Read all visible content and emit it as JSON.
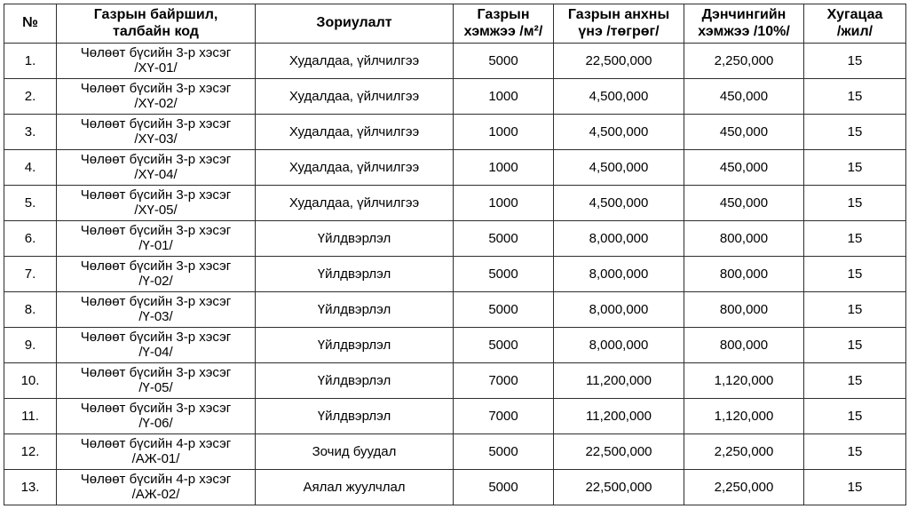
{
  "table": {
    "headers": [
      "№",
      "Газрын байршил,\nталбайн код",
      "Зориулалт",
      "Газрын\nхэмжээ /м²/",
      "Газрын анхны\nүнэ /төгрөг/",
      "Дэнчингийн\nхэмжээ /10%/",
      "Хугацаа\n/жил/"
    ],
    "rows": [
      {
        "no": "1.",
        "location": "Чөлөөт бүсийн 3-р хэсэг\n/ХҮ-01/",
        "purpose": "Худалдаа, үйлчилгээ",
        "size": "5000",
        "price": "22,500,000",
        "deposit": "2,250,000",
        "years": "15"
      },
      {
        "no": "2.",
        "location": "Чөлөөт бүсийн 3-р хэсэг\n/ХҮ-02/",
        "purpose": "Худалдаа, үйлчилгээ",
        "size": "1000",
        "price": "4,500,000",
        "deposit": "450,000",
        "years": "15"
      },
      {
        "no": "3.",
        "location": "Чөлөөт бүсийн 3-р хэсэг\n/ХҮ-03/",
        "purpose": "Худалдаа, үйлчилгээ",
        "size": "1000",
        "price": "4,500,000",
        "deposit": "450,000",
        "years": "15"
      },
      {
        "no": "4.",
        "location": "Чөлөөт бүсийн 3-р хэсэг\n/ХҮ-04/",
        "purpose": "Худалдаа, үйлчилгээ",
        "size": "1000",
        "price": "4,500,000",
        "deposit": "450,000",
        "years": "15"
      },
      {
        "no": "5.",
        "location": "Чөлөөт бүсийн 3-р хэсэг\n/ХҮ-05/",
        "purpose": "Худалдаа, үйлчилгээ",
        "size": "1000",
        "price": "4,500,000",
        "deposit": "450,000",
        "years": "15"
      },
      {
        "no": "6.",
        "location": "Чөлөөт бүсийн 3-р хэсэг\n/Ү-01/",
        "purpose": "Үйлдвэрлэл",
        "size": "5000",
        "price": "8,000,000",
        "deposit": "800,000",
        "years": "15"
      },
      {
        "no": "7.",
        "location": "Чөлөөт бүсийн 3-р хэсэг\n/Ү-02/",
        "purpose": "Үйлдвэрлэл",
        "size": "5000",
        "price": "8,000,000",
        "deposit": "800,000",
        "years": "15"
      },
      {
        "no": "8.",
        "location": "Чөлөөт бүсийн 3-р хэсэг\n/Ү-03/",
        "purpose": "Үйлдвэрлэл",
        "size": "5000",
        "price": "8,000,000",
        "deposit": "800,000",
        "years": "15"
      },
      {
        "no": "9.",
        "location": "Чөлөөт бүсийн 3-р хэсэг\n/Ү-04/",
        "purpose": "Үйлдвэрлэл",
        "size": "5000",
        "price": "8,000,000",
        "deposit": "800,000",
        "years": "15"
      },
      {
        "no": "10.",
        "location": "Чөлөөт бүсийн 3-р хэсэг\n/Ү-05/",
        "purpose": "Үйлдвэрлэл",
        "size": "7000",
        "price": "11,200,000",
        "deposit": "1,120,000",
        "years": "15"
      },
      {
        "no": "11.",
        "location": "Чөлөөт бүсийн 3-р хэсэг\n/Ү-06/",
        "purpose": "Үйлдвэрлэл",
        "size": "7000",
        "price": "11,200,000",
        "deposit": "1,120,000",
        "years": "15"
      },
      {
        "no": "12.",
        "location": "Чөлөөт бүсийн 4-р хэсэг\n/АЖ-01/",
        "purpose": "Зочид буудал",
        "size": "5000",
        "price": "22,500,000",
        "deposit": "2,250,000",
        "years": "15"
      },
      {
        "no": "13.",
        "location": "Чөлөөт бүсийн 4-р хэсэг\n/АЖ-02/",
        "purpose": "Аялал жуулчлал",
        "size": "5000",
        "price": "22,500,000",
        "deposit": "2,250,000",
        "years": "15"
      }
    ]
  }
}
